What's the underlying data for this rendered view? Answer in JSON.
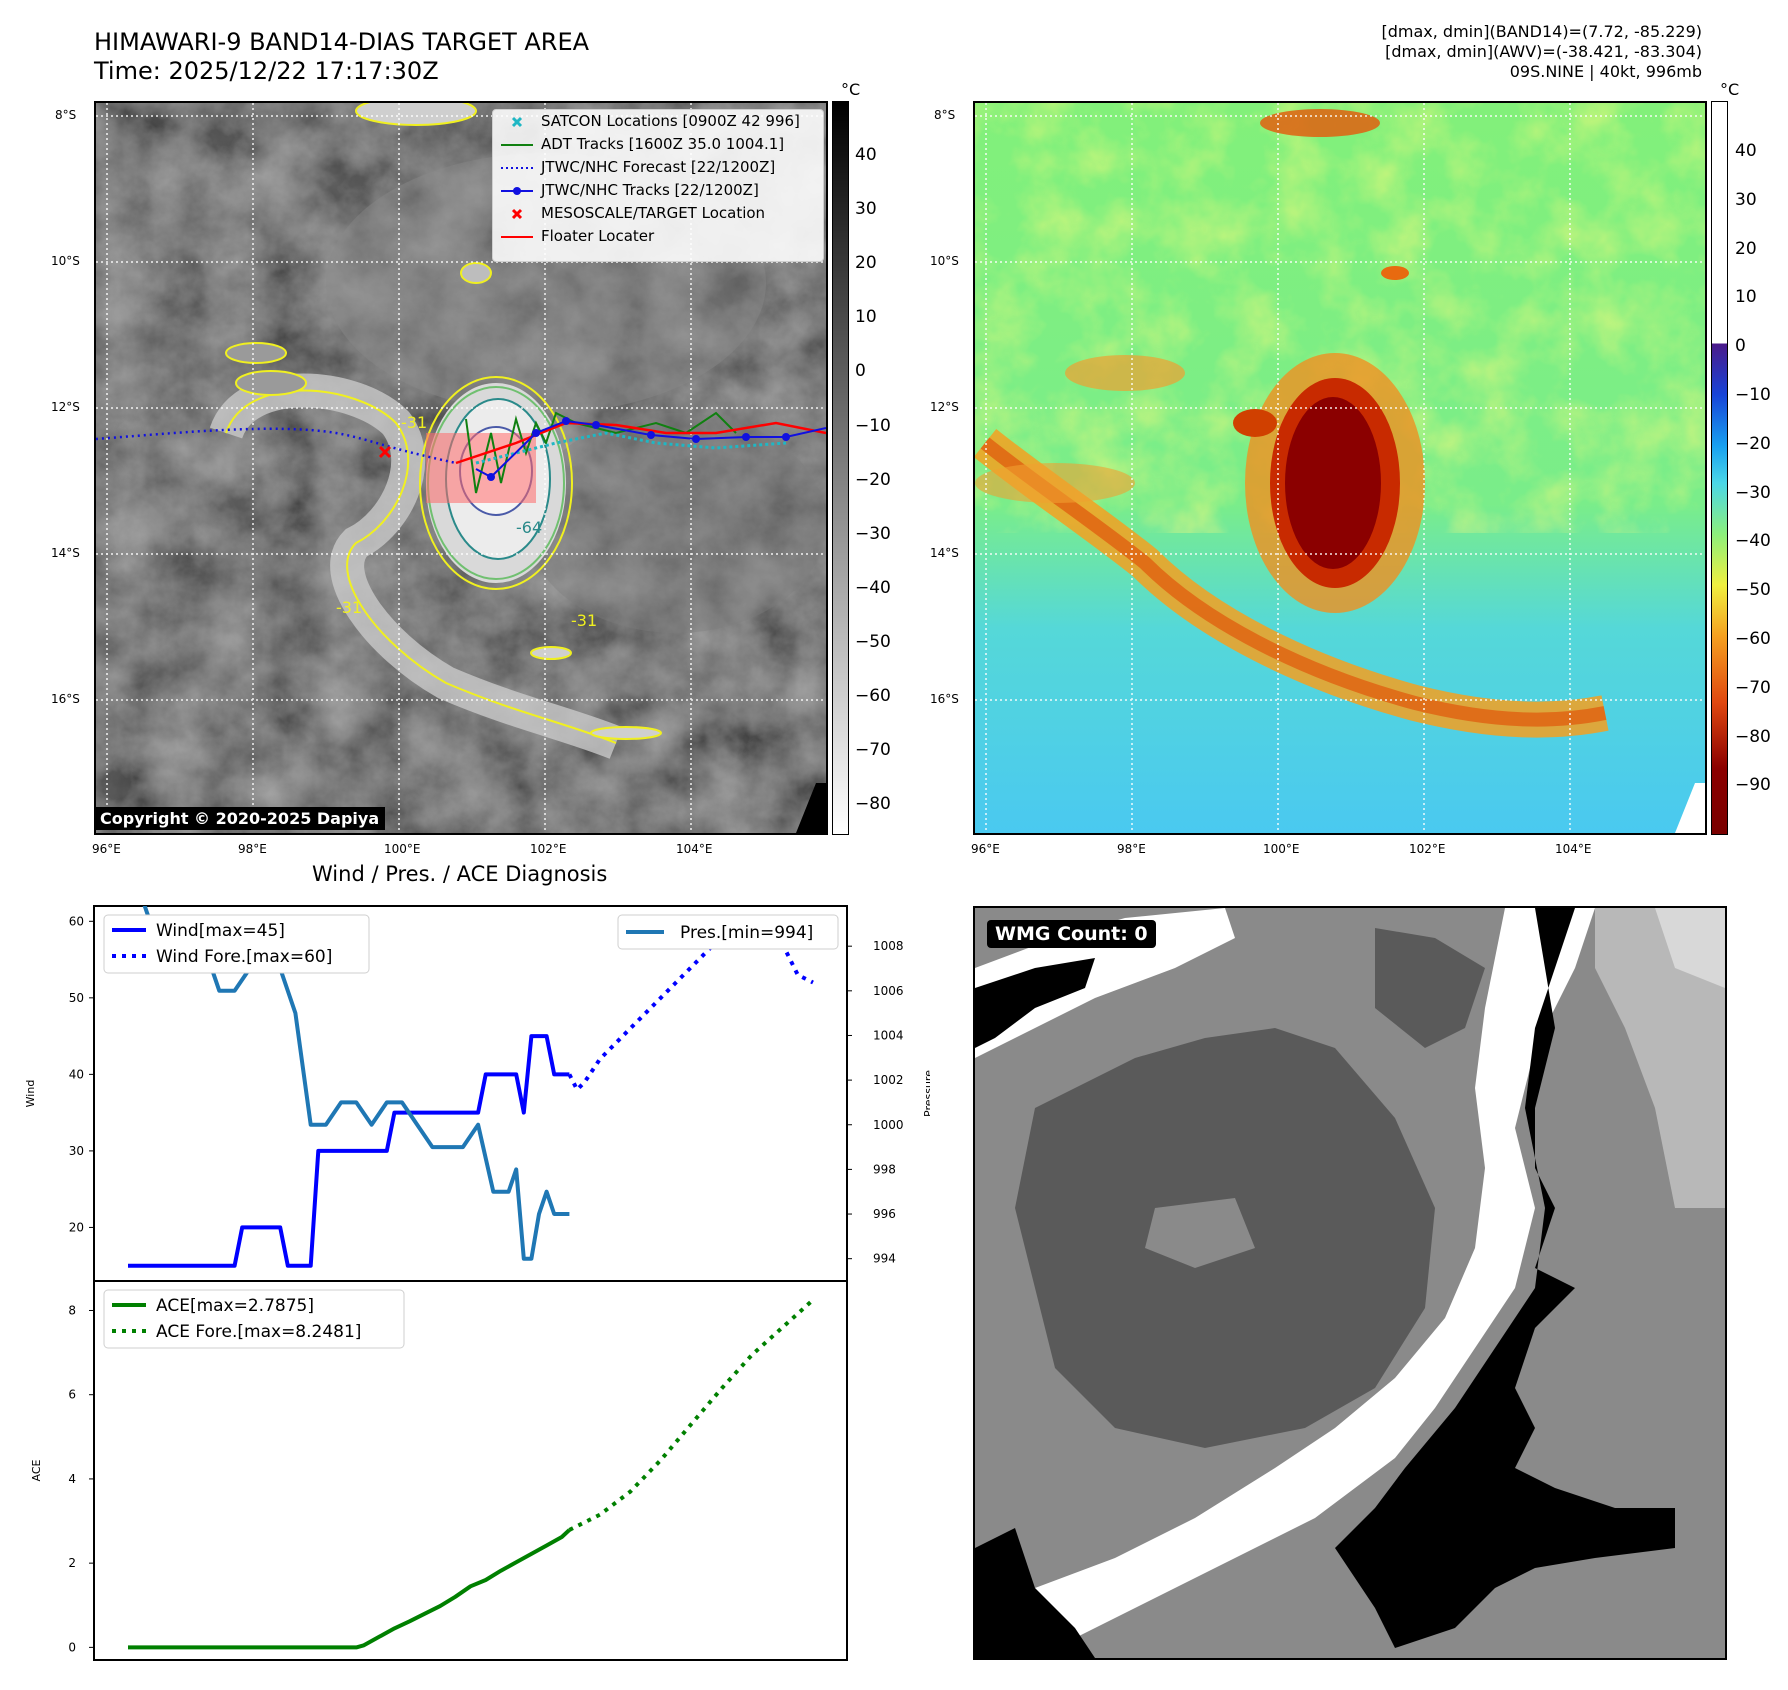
{
  "header": {
    "title": "HIMAWARI-9 BAND14-DIAS TARGET AREA",
    "time": "Time: 2025/12/22 17:17:30Z",
    "stats_band14": "[dmax, dmin](BAND14)=(7.72, -85.229)",
    "stats_awv": "[dmax, dmin](AWV)=(-38.421, -83.304)",
    "storm": "09S.NINE | 40kt, 996mb"
  },
  "map_axes": {
    "lat_labels": [
      "8°S",
      "10°S",
      "12°S",
      "14°S",
      "16°S"
    ],
    "lon_labels": [
      "96°E",
      "98°E",
      "100°E",
      "102°E",
      "104°E"
    ],
    "unit": "°C"
  },
  "ir_map": {
    "legend": [
      {
        "label": "SATCON Locations [0900Z 42 996]",
        "color": "#1fb7c4",
        "kind": "x"
      },
      {
        "label": "ADT Tracks [1600Z 35.0 1004.1]",
        "color": "#108010",
        "kind": "line"
      },
      {
        "label": "JTWC/NHC Forecast [22/1200Z]",
        "color": "#1010e0",
        "kind": "dotted"
      },
      {
        "label": "JTWC/NHC Tracks [22/1200Z]",
        "color": "#1010e0",
        "kind": "line-dot"
      },
      {
        "label": "MESOSCALE/TARGET Location",
        "color": "#ff0000",
        "kind": "x"
      },
      {
        "label": "Floater Locater",
        "color": "#ff0000",
        "kind": "line"
      }
    ],
    "colorbar_ticks": [
      "40",
      "30",
      "20",
      "10",
      "0",
      "−10",
      "−20",
      "−30",
      "−40",
      "−50",
      "−60",
      "−70",
      "−80"
    ],
    "contour_labels": [
      "-31",
      "-64"
    ],
    "copyright": "Copyright © 2020-2025 Dapiya"
  },
  "awv_map": {
    "colorbar_ticks": [
      "40",
      "30",
      "20",
      "10",
      "0",
      "−10",
      "−20",
      "−30",
      "−40",
      "−50",
      "−60",
      "−70",
      "−80",
      "−90"
    ]
  },
  "wmg": {
    "label": "WMG Count: 0"
  },
  "chart_data": [
    {
      "type": "line",
      "title": "Wind / Pres. / ACE Diagnosis",
      "ylabel": "Wind",
      "y2label": "Pressure",
      "ylim": [
        13,
        62
      ],
      "y2lim": [
        993,
        1009.8
      ],
      "yticks": [
        20,
        30,
        40,
        50,
        60
      ],
      "y2ticks": [
        994,
        996,
        998,
        1000,
        1002,
        1004,
        1006,
        1008
      ],
      "legend_left": [
        "Wind[max=45]",
        "Wind Fore.[max=60]"
      ],
      "legend_right": [
        "Pres.[min=994]"
      ],
      "series": [
        {
          "name": "Wind",
          "axis": "left",
          "style": "solid",
          "color": "#0000ff",
          "x": [
            0,
            5,
            6,
            7,
            8,
            9,
            10,
            11,
            12,
            13,
            14,
            15,
            16,
            17,
            18,
            19,
            20,
            21,
            22,
            23,
            24,
            25,
            26,
            27,
            28,
            29,
            30,
            31,
            32,
            33,
            34,
            35,
            36,
            37,
            38,
            39,
            40,
            41,
            42,
            43,
            44,
            45,
            46,
            47,
            48,
            49,
            50,
            51,
            52,
            53,
            54,
            55,
            56,
            57,
            58
          ],
          "y": [
            15,
            15,
            15,
            15,
            15,
            15,
            15,
            15,
            15,
            15,
            15,
            20,
            20,
            20,
            20,
            20,
            20,
            15,
            15,
            15,
            15,
            30,
            30,
            30,
            30,
            30,
            30,
            30,
            30,
            30,
            30,
            35,
            35,
            35,
            35,
            35,
            35,
            35,
            35,
            35,
            35,
            35,
            35,
            40,
            40,
            40,
            40,
            40,
            35,
            45,
            45,
            45,
            40,
            40,
            40
          ]
        },
        {
          "name": "Wind Fore.",
          "axis": "left",
          "style": "dotted",
          "color": "#0000ff",
          "x": [
            58,
            59,
            60,
            62,
            64,
            66,
            68,
            70,
            72,
            74,
            76,
            78,
            80,
            82,
            84,
            86,
            88,
            90
          ],
          "y": [
            40,
            38,
            39,
            42,
            44,
            46,
            48,
            50,
            52,
            54,
            56,
            58,
            59,
            60,
            58,
            57,
            53,
            52
          ]
        },
        {
          "name": "Pres.",
          "axis": "right",
          "style": "solid",
          "color": "#1f77b4",
          "x": [
            0,
            2,
            4,
            6,
            8,
            10,
            12,
            14,
            16,
            18,
            20,
            22,
            24,
            26,
            28,
            30,
            32,
            34,
            36,
            38,
            40,
            42,
            44,
            46,
            48,
            49,
            50,
            51,
            52,
            53,
            54,
            55,
            56,
            57,
            58
          ],
          "y": [
            1010,
            1010,
            1008,
            1008,
            1008,
            1008,
            1006,
            1006,
            1007,
            1007,
            1007,
            1005,
            1000,
            1000,
            1001,
            1001,
            1000,
            1001,
            1001,
            1000,
            999,
            999,
            999,
            1000,
            997,
            997,
            997,
            998,
            994,
            994,
            996,
            997,
            996,
            996,
            996
          ]
        }
      ]
    },
    {
      "type": "line",
      "ylabel": "ACE",
      "ylim": [
        -0.3,
        8.7
      ],
      "yticks": [
        0,
        2,
        4,
        6,
        8
      ],
      "legend": [
        "ACE[max=2.7875]",
        "ACE Fore.[max=8.2481]"
      ],
      "series": [
        {
          "name": "ACE",
          "style": "solid",
          "color": "#008000",
          "x": [
            0,
            10,
            20,
            30,
            31,
            33,
            35,
            37,
            39,
            41,
            43,
            45,
            47,
            49,
            51,
            53,
            55,
            57,
            58
          ],
          "y": [
            0,
            0,
            0,
            0,
            0.05,
            0.25,
            0.45,
            0.62,
            0.8,
            0.98,
            1.2,
            1.45,
            1.6,
            1.82,
            2.02,
            2.22,
            2.42,
            2.62,
            2.79
          ]
        },
        {
          "name": "ACE Fore.",
          "style": "dotted",
          "color": "#008000",
          "x": [
            58,
            62,
            66,
            70,
            74,
            78,
            82,
            86,
            90
          ],
          "y": [
            2.79,
            3.15,
            3.7,
            4.45,
            5.3,
            6.15,
            6.95,
            7.6,
            8.25
          ]
        }
      ]
    }
  ]
}
